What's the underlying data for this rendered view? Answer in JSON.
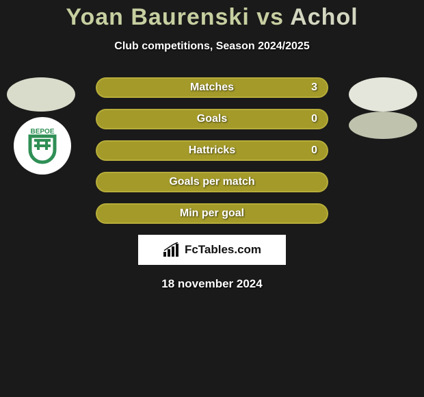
{
  "title": {
    "parts": [
      "Yoan Baurenski",
      " vs ",
      "Achol"
    ],
    "color_left": "#c6cfa0",
    "color_mid": "#c7cfa2",
    "color_right": "#d4d7c0",
    "fontsize": 34
  },
  "subtitle": "Club competitions, Season 2024/2025",
  "avatars": {
    "left_color": "#d9dccb",
    "right_color": "#e4e6db",
    "right2_color": "#bfc2ad"
  },
  "club_badge": {
    "text": "BEPOE",
    "stroke": "#2f8f55",
    "bg": "#ffffff"
  },
  "bars": {
    "fill_color": "#a39a2a",
    "border_color": "#b7ad3a",
    "label_color": "#ffffff",
    "height": 30,
    "radius": 15,
    "rows": [
      {
        "label": "Matches",
        "value": "3",
        "show_value": true
      },
      {
        "label": "Goals",
        "value": "0",
        "show_value": true
      },
      {
        "label": "Hattricks",
        "value": "0",
        "show_value": true
      },
      {
        "label": "Goals per match",
        "value": "",
        "show_value": false
      },
      {
        "label": "Min per goal",
        "value": "",
        "show_value": false
      }
    ]
  },
  "brand": {
    "text": "FcTables.com",
    "icon_color": "#111111"
  },
  "date": "18 november 2024",
  "background_color": "#1a1a1a"
}
